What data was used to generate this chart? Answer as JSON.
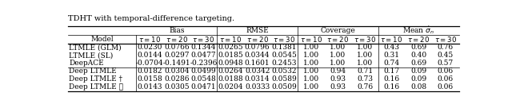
{
  "title": "TDHT with temporal-difference targeting.",
  "group_headers": [
    "Bias",
    "RMSE",
    "Coverage",
    "Mean $\\dot{\\sigma}_n$"
  ],
  "sub_headers": [
    "τ = 10",
    "τ = 20",
    "τ = 30",
    "τ = 10",
    "τ = 20",
    "τ = 30",
    "τ = 10",
    "τ = 20",
    "τ = 30",
    "τ = 10",
    "τ = 20",
    "τ = 30"
  ],
  "rows": [
    [
      "LTMLE (GLM)",
      "0.0230",
      "0.0766",
      "0.1344",
      "0.0265",
      "0.0796",
      "0.1381",
      "1.00",
      "1.00",
      "1.00",
      "0.43",
      "0.69",
      "0.76"
    ],
    [
      "LTMLE (SL)",
      "0.0144",
      "0.0297",
      "0.0477",
      "0.0185",
      "0.0344",
      "0.0545",
      "1.00",
      "1.00",
      "1.00",
      "0.31",
      "0.40",
      "0.45"
    ],
    [
      "DeepACE",
      "-0.0704",
      "-0.1491",
      "-0.2396",
      "0.0948",
      "0.1601",
      "0.2453",
      "1.00",
      "1.00",
      "1.00",
      "0.74",
      "0.69",
      "0.57"
    ],
    [
      "Deep LTMLE",
      "0.0182",
      "0.0304",
      "0.0499",
      "0.0264",
      "0.0342",
      "0.0532",
      "1.00",
      "0.94",
      "0.71",
      "0.17",
      "0.09",
      "0.06"
    ],
    [
      "Deep LTMLE †",
      "0.0158",
      "0.0286",
      "0.0548",
      "0.0188",
      "0.0314",
      "0.0589",
      "1.00",
      "0.93",
      "0.73",
      "0.16",
      "0.09",
      "0.06"
    ],
    [
      "Deep LTMLE ★",
      "0.0143",
      "0.0305",
      "0.0471",
      "0.0204",
      "0.0333",
      "0.0509",
      "1.00",
      "0.93",
      "0.76",
      "0.16",
      "0.08",
      "0.06"
    ]
  ],
  "separator_after_row": 2,
  "bg_color": "#ffffff",
  "font_size": 6.5
}
